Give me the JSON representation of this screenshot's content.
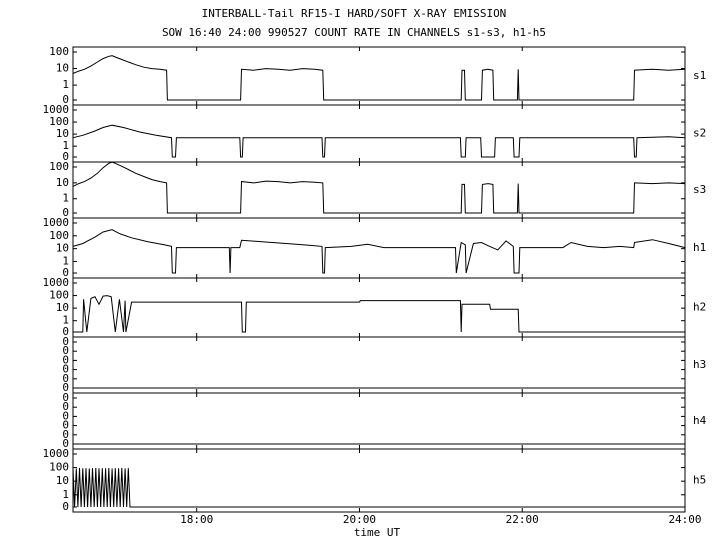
{
  "chart_data": [
    {
      "type": "line",
      "title": "INTERBALL-Tail RF15-I HARD/SOFT X-RAY EMISSION",
      "subtitle": "SOW 16:40 24:00 990527  COUNT RATE IN CHANNELS s1-s3, h1-h5",
      "panel_label": "s1",
      "color": "#000000",
      "yscale": "log",
      "xlim": [
        16.48,
        24
      ],
      "ylim": [
        0,
        100
      ],
      "yticks": [
        0,
        1,
        10,
        100
      ],
      "x": [
        16.48,
        16.55,
        16.62,
        16.7,
        16.78,
        16.85,
        16.92,
        16.96,
        17.0,
        17.08,
        17.16,
        17.25,
        17.35,
        17.45,
        17.55,
        17.63,
        17.64,
        18.54,
        18.55,
        18.7,
        18.85,
        19.0,
        19.15,
        19.3,
        19.45,
        19.55,
        19.56,
        21.25,
        21.26,
        21.29,
        21.3,
        21.5,
        21.51,
        21.58,
        21.64,
        21.65,
        21.94,
        21.95,
        21.96,
        23.37,
        23.38,
        23.6,
        23.8,
        24
      ],
      "values": [
        5,
        7,
        9,
        14,
        25,
        40,
        55,
        60,
        50,
        35,
        25,
        17,
        12,
        10,
        9,
        8,
        0,
        0,
        9,
        8,
        10,
        9,
        8,
        10,
        9,
        8,
        0,
        0,
        8,
        8,
        0,
        0,
        8,
        9,
        8,
        0,
        0,
        9,
        0,
        0,
        8,
        9,
        8,
        9
      ]
    },
    {
      "type": "line",
      "panel_label": "s2",
      "color": "#000000",
      "yscale": "log",
      "xlim": [
        16.48,
        24
      ],
      "ylim": [
        0,
        1000
      ],
      "yticks": [
        0,
        1,
        10,
        100,
        1000
      ],
      "x": [
        16.48,
        16.6,
        16.75,
        16.85,
        16.96,
        17.1,
        17.3,
        17.5,
        17.69,
        17.7,
        17.74,
        17.75,
        18.2,
        18.53,
        18.54,
        18.56,
        18.57,
        19.2,
        19.54,
        19.55,
        19.57,
        19.58,
        20.5,
        21.24,
        21.25,
        21.3,
        21.31,
        21.49,
        21.5,
        21.66,
        21.67,
        21.89,
        21.9,
        21.96,
        21.97,
        22.8,
        23.37,
        23.38,
        23.4,
        23.41,
        23.8,
        24
      ],
      "values": [
        5,
        8,
        18,
        35,
        55,
        35,
        15,
        8,
        5,
        0,
        0,
        5,
        5,
        5,
        0,
        0,
        5,
        5,
        5,
        0,
        0,
        5,
        5,
        5,
        0,
        0,
        5,
        5,
        0,
        0,
        5,
        5,
        0,
        0,
        5,
        5,
        5,
        0,
        0,
        5,
        6,
        5
      ]
    },
    {
      "type": "line",
      "panel_label": "s3",
      "color": "#000000",
      "yscale": "log",
      "xlim": [
        16.48,
        24
      ],
      "ylim": [
        0,
        100
      ],
      "yticks": [
        0,
        1,
        10,
        100
      ],
      "x": [
        16.48,
        16.55,
        16.62,
        16.7,
        16.78,
        16.85,
        16.92,
        16.96,
        17.0,
        17.08,
        17.16,
        17.25,
        17.35,
        17.45,
        17.55,
        17.63,
        17.64,
        18.54,
        18.55,
        18.7,
        18.85,
        19.0,
        19.15,
        19.3,
        19.45,
        19.55,
        19.56,
        21.25,
        21.26,
        21.29,
        21.3,
        21.5,
        21.51,
        21.58,
        21.64,
        21.65,
        21.94,
        21.95,
        21.96,
        23.37,
        23.38,
        23.6,
        23.8,
        24
      ],
      "values": [
        6,
        9,
        12,
        20,
        40,
        90,
        170,
        200,
        170,
        110,
        70,
        40,
        25,
        16,
        12,
        10,
        0,
        0,
        12,
        10,
        13,
        12,
        10,
        12,
        11,
        10,
        0,
        0,
        8,
        8,
        0,
        0,
        8,
        9,
        8,
        0,
        0,
        9,
        0,
        0,
        10,
        9,
        10,
        9
      ]
    },
    {
      "type": "line",
      "panel_label": "h1",
      "color": "#000000",
      "yscale": "log",
      "xlim": [
        16.48,
        24
      ],
      "ylim": [
        0,
        1000
      ],
      "yticks": [
        0,
        1,
        10,
        100,
        1000
      ],
      "x": [
        16.48,
        16.6,
        16.75,
        16.85,
        16.96,
        17.05,
        17.2,
        17.4,
        17.6,
        17.69,
        17.7,
        17.74,
        17.75,
        18.3,
        18.4,
        18.41,
        18.42,
        18.53,
        18.55,
        18.8,
        19.1,
        19.4,
        19.54,
        19.55,
        19.57,
        19.58,
        19.9,
        20.1,
        20.3,
        20.7,
        21.0,
        21.18,
        21.19,
        21.25,
        21.3,
        21.31,
        21.4,
        21.5,
        21.6,
        21.7,
        21.8,
        21.89,
        21.9,
        21.96,
        21.97,
        22.2,
        22.5,
        22.6,
        22.8,
        23.0,
        23.2,
        23.37,
        23.38,
        23.6,
        23.8,
        24
      ],
      "values": [
        15,
        25,
        80,
        200,
        300,
        150,
        70,
        35,
        20,
        15,
        0,
        0,
        12,
        12,
        12,
        0,
        12,
        12,
        45,
        35,
        25,
        18,
        15,
        0,
        0,
        12,
        15,
        22,
        12,
        12,
        12,
        12,
        0,
        30,
        20,
        0,
        25,
        30,
        15,
        8,
        40,
        15,
        0,
        0,
        12,
        12,
        12,
        30,
        15,
        12,
        15,
        12,
        30,
        50,
        25,
        12
      ]
    },
    {
      "type": "line",
      "panel_label": "h2",
      "color": "#000000",
      "yscale": "log",
      "xlim": [
        16.48,
        24
      ],
      "ylim": [
        0,
        1000
      ],
      "yticks": [
        0,
        1,
        10,
        100,
        1000
      ],
      "x": [
        16.48,
        16.6,
        16.61,
        16.65,
        16.7,
        16.75,
        16.8,
        16.85,
        16.9,
        16.95,
        17.0,
        17.05,
        17.1,
        17.12,
        17.13,
        17.2,
        18.55,
        18.56,
        18.6,
        18.61,
        20.0,
        20.01,
        21.24,
        21.25,
        21.26,
        21.6,
        21.61,
        21.95,
        21.96,
        24
      ],
      "values": [
        0,
        0,
        50,
        0,
        60,
        80,
        20,
        90,
        100,
        80,
        0,
        50,
        0,
        40,
        0,
        30,
        30,
        0,
        0,
        30,
        30,
        40,
        40,
        0,
        20,
        20,
        8,
        8,
        0,
        0
      ]
    },
    {
      "type": "line",
      "panel_label": "h3",
      "color": "#000000",
      "yscale": "linear",
      "xlim": [
        16.48,
        24
      ],
      "ylim": [
        0,
        1
      ],
      "yticks": [
        0,
        {
          "value": 0.2,
          "label": "0"
        },
        {
          "value": 0.4,
          "label": "0"
        },
        {
          "value": 0.6,
          "label": "0"
        },
        {
          "value": 0.8,
          "label": "0"
        },
        {
          "value": 1,
          "label": "0"
        }
      ],
      "x": [
        16.48,
        24
      ],
      "values": [
        0,
        0
      ]
    },
    {
      "type": "line",
      "panel_label": "h4",
      "color": "#000000",
      "yscale": "linear",
      "xlim": [
        16.48,
        24
      ],
      "ylim": [
        0,
        1
      ],
      "yticks": [
        0,
        {
          "value": 0.2,
          "label": "0"
        },
        {
          "value": 0.4,
          "label": "0"
        },
        {
          "value": 0.6,
          "label": "0"
        },
        {
          "value": 0.8,
          "label": "0"
        },
        {
          "value": 1,
          "label": "0"
        }
      ],
      "x": [
        16.48,
        24
      ],
      "values": [
        0,
        0
      ]
    },
    {
      "type": "line",
      "panel_label": "h5",
      "color": "#000000",
      "yscale": "log",
      "xlim": [
        16.48,
        24
      ],
      "ylim": [
        0,
        1000
      ],
      "yticks": [
        0,
        1,
        10,
        100,
        1000
      ],
      "xlabel": "time UT",
      "xticks": [
        {
          "value": 18,
          "label": "18:00"
        },
        {
          "value": 20,
          "label": "20:00"
        },
        {
          "value": 22,
          "label": "22:00"
        },
        {
          "value": 24,
          "label": "24:00"
        }
      ],
      "x": [
        16.48,
        16.5,
        16.52,
        16.54,
        16.56,
        16.58,
        16.6,
        16.62,
        16.64,
        16.66,
        16.68,
        16.7,
        16.72,
        16.74,
        16.76,
        16.78,
        16.8,
        16.82,
        16.84,
        16.86,
        16.88,
        16.9,
        16.92,
        16.94,
        16.96,
        16.98,
        17.0,
        17.02,
        17.04,
        17.06,
        17.08,
        17.1,
        17.12,
        17.14,
        17.16,
        17.18,
        17.19,
        24
      ],
      "values": [
        90,
        0,
        85,
        0,
        95,
        0,
        88,
        0,
        92,
        0,
        86,
        0,
        90,
        0,
        94,
        0,
        87,
        0,
        91,
        0,
        89,
        0,
        93,
        0,
        86,
        0,
        90,
        0,
        88,
        0,
        95,
        0,
        87,
        0,
        91,
        0,
        0,
        0
      ]
    }
  ]
}
